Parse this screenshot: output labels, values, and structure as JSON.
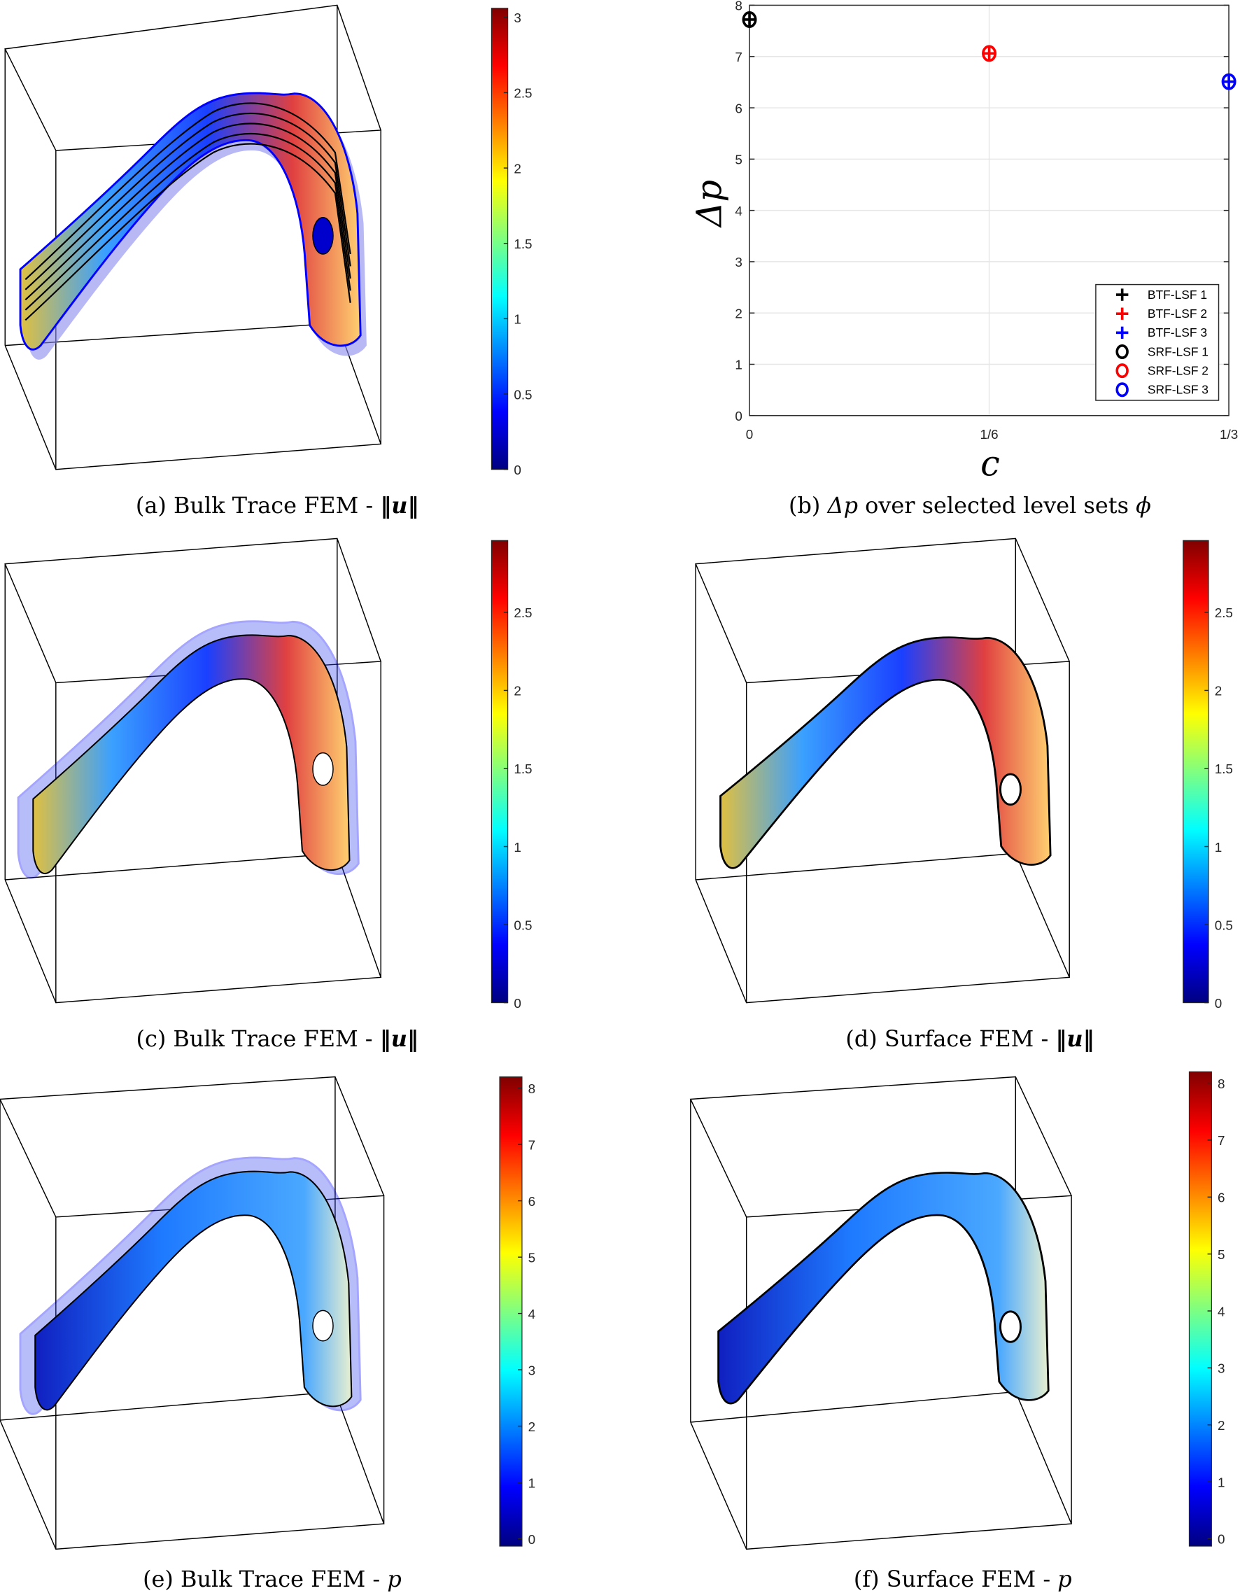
{
  "colors": {
    "black": "#000000",
    "red": "#ff0000",
    "blue": "#0000ff",
    "grid": "#e6e6e6"
  },
  "panels": [
    {
      "id": "a",
      "caption_label": "(a)",
      "caption_text": "Bulk Trace FEM -",
      "caption_math": "‖u‖",
      "colorbar": {
        "min": 0,
        "max": 3.06,
        "ticks": [
          0,
          0.5,
          1,
          1.5,
          2,
          2.5,
          3
        ],
        "labels": [
          "0",
          "0.5",
          "1",
          "1.5",
          "2",
          "2.5",
          "3"
        ]
      }
    },
    {
      "id": "b",
      "caption_label": "(b)",
      "caption_text_pre": "Δp",
      "caption_text": "over selected level sets",
      "caption_math": "ϕ"
    },
    {
      "id": "c",
      "caption_label": "(c)",
      "caption_text": "Bulk Trace FEM -",
      "caption_math": "‖u‖",
      "colorbar": {
        "min": 0,
        "max": 2.96,
        "ticks": [
          0,
          0.5,
          1,
          1.5,
          2,
          2.5
        ],
        "labels": [
          "0",
          "0.5",
          "1",
          "1.5",
          "2",
          "2.5"
        ]
      }
    },
    {
      "id": "d",
      "caption_label": "(d)",
      "caption_text": "Surface FEM -",
      "caption_math": "‖u‖",
      "colorbar": {
        "min": 0,
        "max": 2.96,
        "ticks": [
          0,
          0.5,
          1,
          1.5,
          2,
          2.5
        ],
        "labels": [
          "0",
          "0.5",
          "1",
          "1.5",
          "2",
          "2.5"
        ]
      }
    },
    {
      "id": "e",
      "caption_label": "(e)",
      "caption_text": "Bulk Trace FEM -",
      "caption_math": "p",
      "colorbar": {
        "min": -0.13,
        "max": 8.2,
        "ticks": [
          0,
          1,
          2,
          3,
          4,
          5,
          6,
          7,
          8
        ],
        "labels": [
          "0",
          "1",
          "2",
          "3",
          "4",
          "5",
          "6",
          "7",
          "8"
        ]
      }
    },
    {
      "id": "f",
      "caption_label": "(f)",
      "caption_text": "Surface FEM -",
      "caption_math": "p",
      "colorbar": {
        "min": -0.13,
        "max": 8.2,
        "ticks": [
          0,
          1,
          2,
          3,
          4,
          5,
          6,
          7,
          8
        ],
        "labels": [
          "0",
          "1",
          "2",
          "3",
          "4",
          "5",
          "6",
          "7",
          "8"
        ]
      }
    }
  ],
  "chart_data": {
    "type": "scatter",
    "title": "",
    "xlabel": "c",
    "ylabel": "Δp",
    "xlim": [
      0,
      0.3333
    ],
    "ylim": [
      0,
      8
    ],
    "xticks": [
      0,
      0.16667,
      0.33333
    ],
    "xtick_labels": [
      "0",
      "1/6",
      "1/3"
    ],
    "yticks": [
      0,
      1,
      2,
      3,
      4,
      5,
      6,
      7,
      8
    ],
    "ytick_labels": [
      "0",
      "1",
      "2",
      "3",
      "4",
      "5",
      "6",
      "7",
      "8"
    ],
    "grid": true,
    "legend_placement": "bottom-right",
    "series": [
      {
        "name": "BTF-LSF 1",
        "marker": "plus",
        "color": "#000000",
        "x": [
          0
        ],
        "y": [
          7.72
        ]
      },
      {
        "name": "BTF-LSF 2",
        "marker": "plus",
        "color": "#ff0000",
        "x": [
          0.16667
        ],
        "y": [
          7.06
        ]
      },
      {
        "name": "BTF-LSF 3",
        "marker": "plus",
        "color": "#0000ff",
        "x": [
          0.33333
        ],
        "y": [
          6.51
        ]
      },
      {
        "name": "SRF-LSF 1",
        "marker": "circle",
        "color": "#000000",
        "x": [
          0
        ],
        "y": [
          7.72
        ]
      },
      {
        "name": "SRF-LSF 2",
        "marker": "circle",
        "color": "#ff0000",
        "x": [
          0.16667
        ],
        "y": [
          7.06
        ]
      },
      {
        "name": "SRF-LSF 3",
        "marker": "circle",
        "color": "#0000ff",
        "x": [
          0.33333
        ],
        "y": [
          6.51
        ]
      }
    ]
  }
}
